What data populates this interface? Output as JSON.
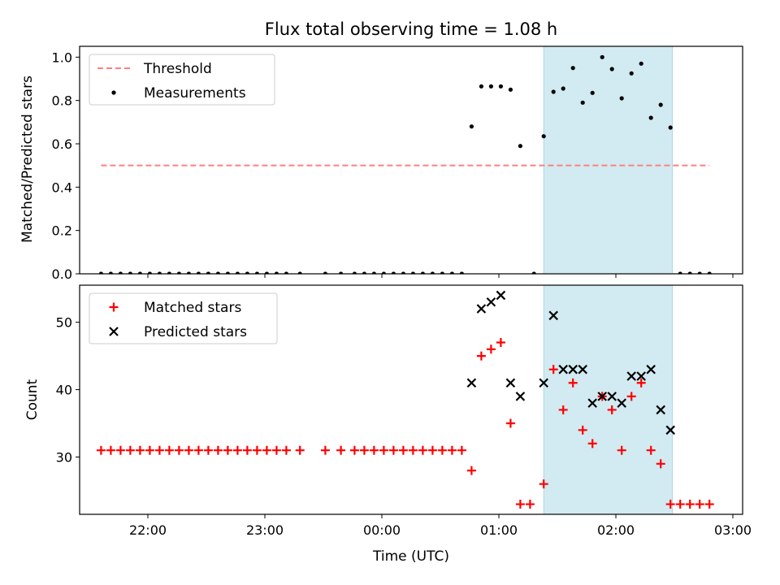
{
  "title": "Flux total observing time = 1.08 h",
  "colors": {
    "threshold": "#ff7f7f",
    "measurements": "#000000",
    "matched": "#ff0000",
    "predicted": "#000000",
    "span": "#add8e6"
  },
  "chart_data": [
    {
      "type": "scatter",
      "ylabel": "Matched/Predicted stars",
      "ylim": [
        0,
        1.05
      ],
      "xlim": [
        "21:25",
        "03:05"
      ],
      "x_ticks": [
        "22:00",
        "23:00",
        "00:00",
        "01:00",
        "02:00",
        "03:00"
      ],
      "y_ticks": [
        "0.0",
        "0.2",
        "0.4",
        "0.6",
        "0.8",
        "1.0"
      ],
      "span": [
        "01:23",
        "02:29"
      ],
      "legend": {
        "placement": "upper-left",
        "entries": [
          "Threshold",
          "Measurements"
        ]
      },
      "threshold": {
        "name": "Threshold",
        "value": 0.5,
        "x_range": [
          "21:36",
          "02:48"
        ]
      },
      "series": [
        {
          "name": "Measurements",
          "marker": "dot",
          "points": [
            [
              "21:36",
              0
            ],
            [
              "21:41",
              0
            ],
            [
              "21:46",
              0
            ],
            [
              "21:51",
              0
            ],
            [
              "21:56",
              0
            ],
            [
              "22:01",
              0
            ],
            [
              "22:06",
              0
            ],
            [
              "22:11",
              0
            ],
            [
              "22:16",
              0
            ],
            [
              "22:21",
              0
            ],
            [
              "22:26",
              0
            ],
            [
              "22:31",
              0
            ],
            [
              "22:36",
              0
            ],
            [
              "22:41",
              0
            ],
            [
              "22:46",
              0
            ],
            [
              "22:51",
              0
            ],
            [
              "22:56",
              0
            ],
            [
              "23:01",
              0
            ],
            [
              "23:06",
              0
            ],
            [
              "23:11",
              0
            ],
            [
              "23:18",
              0
            ],
            [
              "23:31",
              0
            ],
            [
              "23:39",
              0
            ],
            [
              "23:46",
              0
            ],
            [
              "23:51",
              0
            ],
            [
              "23:56",
              0
            ],
            [
              "00:01",
              0
            ],
            [
              "00:06",
              0
            ],
            [
              "00:11",
              0
            ],
            [
              "00:16",
              0
            ],
            [
              "00:21",
              0
            ],
            [
              "00:26",
              0
            ],
            [
              "00:31",
              0
            ],
            [
              "00:36",
              0
            ],
            [
              "00:41",
              0
            ],
            [
              "00:46",
              0.68
            ],
            [
              "00:51",
              0.865
            ],
            [
              "00:56",
              0.865
            ],
            [
              "01:01",
              0.865
            ],
            [
              "01:06",
              0.85
            ],
            [
              "01:11",
              0.59
            ],
            [
              "01:18",
              0
            ],
            [
              "01:23",
              0.635
            ],
            [
              "01:28",
              0.84
            ],
            [
              "01:33",
              0.855
            ],
            [
              "01:38",
              0.95
            ],
            [
              "01:43",
              0.79
            ],
            [
              "01:48",
              0.835
            ],
            [
              "01:53",
              1.0
            ],
            [
              "01:58",
              0.945
            ],
            [
              "02:03",
              0.81
            ],
            [
              "02:08",
              0.925
            ],
            [
              "02:13",
              0.97
            ],
            [
              "02:18",
              0.72
            ],
            [
              "02:23",
              0.78
            ],
            [
              "02:28",
              0.675
            ],
            [
              "02:33",
              0
            ],
            [
              "02:38",
              0
            ],
            [
              "02:43",
              0
            ],
            [
              "02:48",
              0
            ]
          ]
        }
      ]
    },
    {
      "type": "scatter",
      "xlabel": "Time (UTC)",
      "ylabel": "Count",
      "ylim": [
        21.5,
        55.5
      ],
      "xlim": [
        "21:25",
        "03:05"
      ],
      "x_ticks": [
        "22:00",
        "23:00",
        "00:00",
        "01:00",
        "02:00",
        "03:00"
      ],
      "y_ticks": [
        "30",
        "40",
        "50"
      ],
      "span": [
        "01:23",
        "02:29"
      ],
      "legend": {
        "placement": "upper-left",
        "entries": [
          "Matched stars",
          "Predicted stars"
        ]
      },
      "series": [
        {
          "name": "Matched stars",
          "marker": "plus",
          "points": [
            [
              "21:36",
              31
            ],
            [
              "21:41",
              31
            ],
            [
              "21:46",
              31
            ],
            [
              "21:51",
              31
            ],
            [
              "21:56",
              31
            ],
            [
              "22:01",
              31
            ],
            [
              "22:06",
              31
            ],
            [
              "22:11",
              31
            ],
            [
              "22:16",
              31
            ],
            [
              "22:21",
              31
            ],
            [
              "22:26",
              31
            ],
            [
              "22:31",
              31
            ],
            [
              "22:36",
              31
            ],
            [
              "22:41",
              31
            ],
            [
              "22:46",
              31
            ],
            [
              "22:51",
              31
            ],
            [
              "22:56",
              31
            ],
            [
              "23:01",
              31
            ],
            [
              "23:06",
              31
            ],
            [
              "23:11",
              31
            ],
            [
              "23:18",
              31
            ],
            [
              "23:31",
              31
            ],
            [
              "23:39",
              31
            ],
            [
              "23:46",
              31
            ],
            [
              "23:51",
              31
            ],
            [
              "23:56",
              31
            ],
            [
              "00:01",
              31
            ],
            [
              "00:06",
              31
            ],
            [
              "00:11",
              31
            ],
            [
              "00:16",
              31
            ],
            [
              "00:21",
              31
            ],
            [
              "00:26",
              31
            ],
            [
              "00:31",
              31
            ],
            [
              "00:36",
              31
            ],
            [
              "00:41",
              31
            ],
            [
              "00:46",
              28
            ],
            [
              "00:51",
              45
            ],
            [
              "00:56",
              46
            ],
            [
              "01:01",
              47
            ],
            [
              "01:06",
              35
            ],
            [
              "01:11",
              23
            ],
            [
              "01:16",
              23
            ],
            [
              "01:23",
              26
            ],
            [
              "01:28",
              43
            ],
            [
              "01:33",
              37
            ],
            [
              "01:38",
              41
            ],
            [
              "01:43",
              34
            ],
            [
              "01:48",
              32
            ],
            [
              "01:53",
              39
            ],
            [
              "01:58",
              37
            ],
            [
              "02:03",
              31
            ],
            [
              "02:08",
              39
            ],
            [
              "02:13",
              41
            ],
            [
              "02:18",
              31
            ],
            [
              "02:23",
              29
            ],
            [
              "02:28",
              23
            ],
            [
              "02:33",
              23
            ],
            [
              "02:38",
              23
            ],
            [
              "02:43",
              23
            ],
            [
              "02:48",
              23
            ]
          ]
        },
        {
          "name": "Predicted stars",
          "marker": "x",
          "points": [
            [
              "00:46",
              41
            ],
            [
              "00:51",
              52
            ],
            [
              "00:56",
              53
            ],
            [
              "01:01",
              54
            ],
            [
              "01:06",
              41
            ],
            [
              "01:11",
              39
            ],
            [
              "01:23",
              41
            ],
            [
              "01:28",
              51
            ],
            [
              "01:33",
              43
            ],
            [
              "01:38",
              43
            ],
            [
              "01:43",
              43
            ],
            [
              "01:48",
              38
            ],
            [
              "01:53",
              39
            ],
            [
              "01:58",
              39
            ],
            [
              "02:03",
              38
            ],
            [
              "02:08",
              42
            ],
            [
              "02:13",
              42
            ],
            [
              "02:18",
              43
            ],
            [
              "02:23",
              37
            ],
            [
              "02:28",
              34
            ]
          ]
        }
      ]
    }
  ]
}
